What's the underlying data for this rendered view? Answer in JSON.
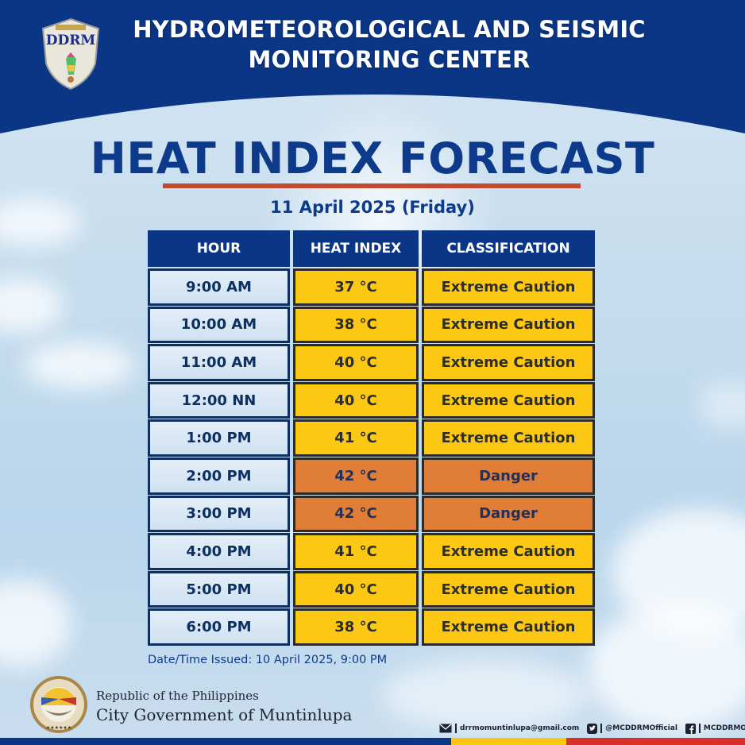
{
  "header": {
    "org_logo": "DDRM",
    "title_line1": "HYDROMETEOROLOGICAL AND SEISMIC",
    "title_line2": "MONITORING CENTER",
    "band_color": "#0b3585"
  },
  "main": {
    "title": "HEAT INDEX FORECAST",
    "rule_color": "#c24a2e",
    "date": "11 April 2025 (Friday)"
  },
  "table": {
    "columns": [
      "HOUR",
      "HEAT INDEX",
      "CLASSIFICATION"
    ],
    "rows": [
      {
        "hour": "9:00 AM",
        "heat_index": "37 °C",
        "classification": "Extreme Caution",
        "level": "yellow"
      },
      {
        "hour": "10:00 AM",
        "heat_index": "38 °C",
        "classification": "Extreme Caution",
        "level": "yellow"
      },
      {
        "hour": "11:00 AM",
        "heat_index": "40 °C",
        "classification": "Extreme Caution",
        "level": "yellow"
      },
      {
        "hour": "12:00 NN",
        "heat_index": "40 °C",
        "classification": "Extreme Caution",
        "level": "yellow"
      },
      {
        "hour": "1:00 PM",
        "heat_index": "41 °C",
        "classification": "Extreme Caution",
        "level": "yellow"
      },
      {
        "hour": "2:00 PM",
        "heat_index": "42 °C",
        "classification": "Danger",
        "level": "orange"
      },
      {
        "hour": "3:00 PM",
        "heat_index": "42 °C",
        "classification": "Danger",
        "level": "orange"
      },
      {
        "hour": "4:00 PM",
        "heat_index": "41 °C",
        "classification": "Extreme Caution",
        "level": "yellow"
      },
      {
        "hour": "5:00 PM",
        "heat_index": "40 °C",
        "classification": "Extreme Caution",
        "level": "yellow"
      },
      {
        "hour": "6:00 PM",
        "heat_index": "38 °C",
        "classification": "Extreme Caution",
        "level": "yellow"
      }
    ],
    "colors": {
      "extreme_caution": "#fcc814",
      "danger": "#e07e37",
      "header": "#0b3585"
    }
  },
  "issued": "Date/Time Issued: 10 April 2025, 9:00 PM",
  "footer": {
    "seal_text": "LUNGSOD NG MUNTINLUPA",
    "gov_line1": "Republic of the Philippines",
    "gov_line2": "City Government of Muntinlupa",
    "contacts": [
      {
        "icon": "mail-icon",
        "text": "drrmomuntinlupa@gmail.com"
      },
      {
        "icon": "twitter-icon",
        "text": "@MCDDRMOfficial"
      },
      {
        "icon": "facebook-icon",
        "text": "MCDDRMOfficial"
      }
    ],
    "flag_bar": {
      "blue": "#0b3585",
      "yellow": "#fcc814",
      "red": "#d8312a"
    }
  }
}
